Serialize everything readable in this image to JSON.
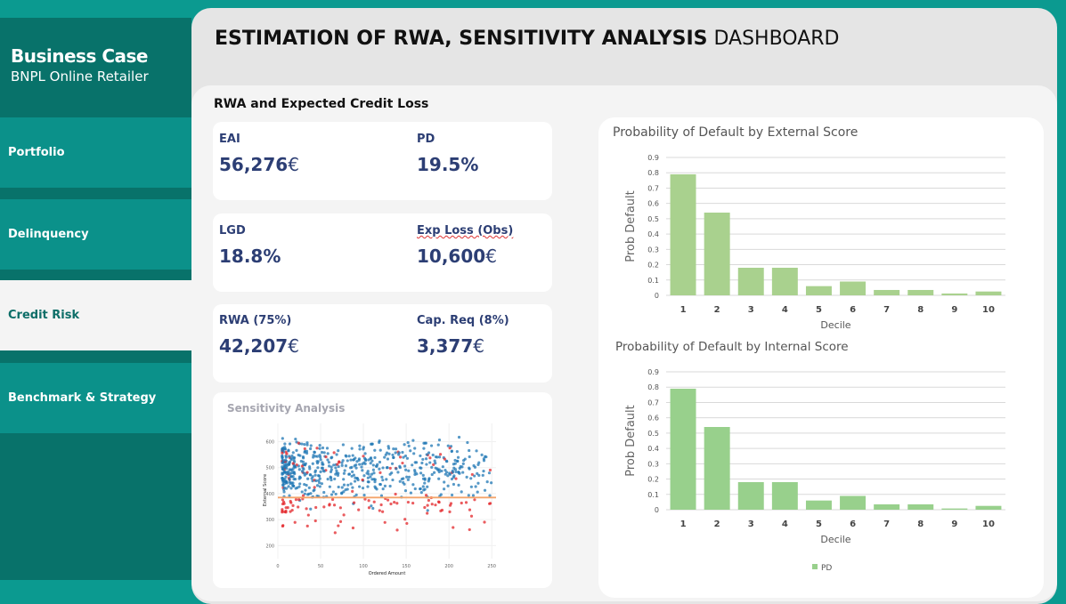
{
  "sidebar": {
    "title": "Business Case",
    "subtitle": "BNPL Online Retailer",
    "items": [
      {
        "label": "Portfolio",
        "active": false
      },
      {
        "label": "Delinquency",
        "active": false
      },
      {
        "label": "Credit Risk",
        "active": true
      },
      {
        "label": "Benchmark & Strategy",
        "active": false
      }
    ]
  },
  "header": {
    "title_bold": "ESTIMATION OF RWA, SENSITIVITY ANALYSIS",
    "title_rest": " DASHBOARD"
  },
  "section_title": "RWA and Expected Credit Loss",
  "kpis": [
    {
      "label": "EAI",
      "value": "56,276",
      "unit": "€"
    },
    {
      "label": "PD",
      "value": "19.5%",
      "unit": ""
    },
    {
      "label": "LGD",
      "value": "18.8%",
      "unit": ""
    },
    {
      "label": "Exp Loss (Obs)",
      "value": "10,600",
      "unit": "€"
    },
    {
      "label": "RWA (75%)",
      "value": "42,207",
      "unit": "€"
    },
    {
      "label": "Cap. Req (8%)",
      "value": "3,377",
      "unit": "€"
    }
  ],
  "colors": {
    "sidebar_dark": "#08726a",
    "sidebar_item": "#0b918a",
    "kpi_text": "#2c3e74",
    "bar_external": "#a9d18e",
    "bar_internal": "#98d08c",
    "scatter_good": "#1f77b4",
    "scatter_bad": "#e3262a",
    "threshold": "#f4a46a"
  },
  "chart_data": [
    {
      "type": "scatter",
      "title": "Sensitivity Analysis",
      "xlabel": "Ordered Amount",
      "ylabel": "External Score",
      "xlim": [
        0,
        255
      ],
      "ylim": [
        150,
        670
      ],
      "xticks": [
        "0",
        "50",
        "100",
        "150",
        "200",
        "250"
      ],
      "yticks": [
        "200",
        "300",
        "400",
        "500",
        "600"
      ],
      "threshold_y": 385,
      "grid": true
    },
    {
      "type": "bar",
      "title": "Probability of Default by External Score",
      "xlabel": "Decile",
      "ylabel": "Prob Default",
      "ylim": [
        0,
        0.9
      ],
      "yticks": [
        "0",
        "0.1",
        "0.2",
        "0.3",
        "0.4",
        "0.5",
        "0.6",
        "0.7",
        "0.8",
        "0.9"
      ],
      "categories": [
        "1",
        "2",
        "3",
        "4",
        "5",
        "6",
        "7",
        "8",
        "9",
        "10"
      ],
      "values": [
        0.79,
        0.54,
        0.18,
        0.18,
        0.06,
        0.09,
        0.035,
        0.035,
        0.012,
        0.025
      ],
      "grid": true
    },
    {
      "type": "bar",
      "title": "Probability of Default by Internal Score",
      "xlabel": "Decile",
      "ylabel": "Prob Default",
      "ylim": [
        0,
        0.9
      ],
      "yticks": [
        "0",
        "0.1",
        "0.2",
        "0.3",
        "0.4",
        "0.5",
        "0.6",
        "0.7",
        "0.8",
        "0.9"
      ],
      "categories": [
        "1",
        "2",
        "3",
        "4",
        "5",
        "6",
        "7",
        "8",
        "9",
        "10"
      ],
      "series": [
        {
          "name": "PD",
          "values": [
            0.79,
            0.54,
            0.18,
            0.18,
            0.06,
            0.09,
            0.035,
            0.035,
            0.008,
            0.025
          ]
        }
      ],
      "legend": "bottom",
      "grid": true
    }
  ]
}
